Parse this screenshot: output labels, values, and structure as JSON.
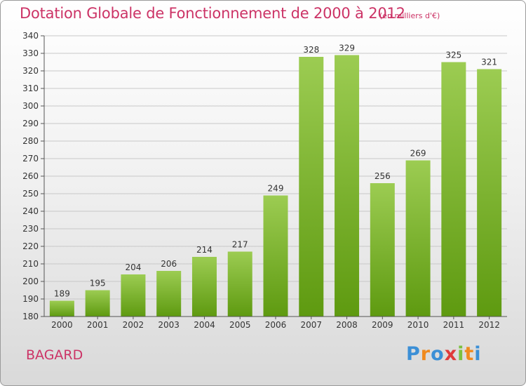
{
  "header": {
    "title": "Dotation Globale de Fonctionnement de 2000 à 2012",
    "unit": "(en milliers d'€)"
  },
  "footer": {
    "commune": "BAGARD",
    "logo": "Proxiti"
  },
  "colors": {
    "title": "#cc3366",
    "bar_top": "#9ccc52",
    "bar_bottom": "#5e9a10",
    "grid": "#c8c8c8",
    "logo_letters": [
      "#3b8fd6",
      "#f08a1e",
      "#3b8fd6",
      "#e03a3a",
      "#7cc13f",
      "#f08a1e",
      "#3b8fd6"
    ]
  },
  "chart_data": {
    "type": "bar",
    "title": "Dotation Globale de Fonctionnement de 2000 à 2012",
    "xlabel": "",
    "ylabel": "",
    "categories": [
      "2000",
      "2001",
      "2002",
      "2003",
      "2004",
      "2005",
      "2006",
      "2007",
      "2008",
      "2009",
      "2010",
      "2011",
      "2012"
    ],
    "values": [
      189,
      195,
      204,
      206,
      214,
      217,
      249,
      328,
      329,
      256,
      269,
      325,
      321
    ],
    "ylim": [
      180,
      340
    ],
    "ytick_step": 10,
    "grid": true,
    "data_labels": true
  }
}
